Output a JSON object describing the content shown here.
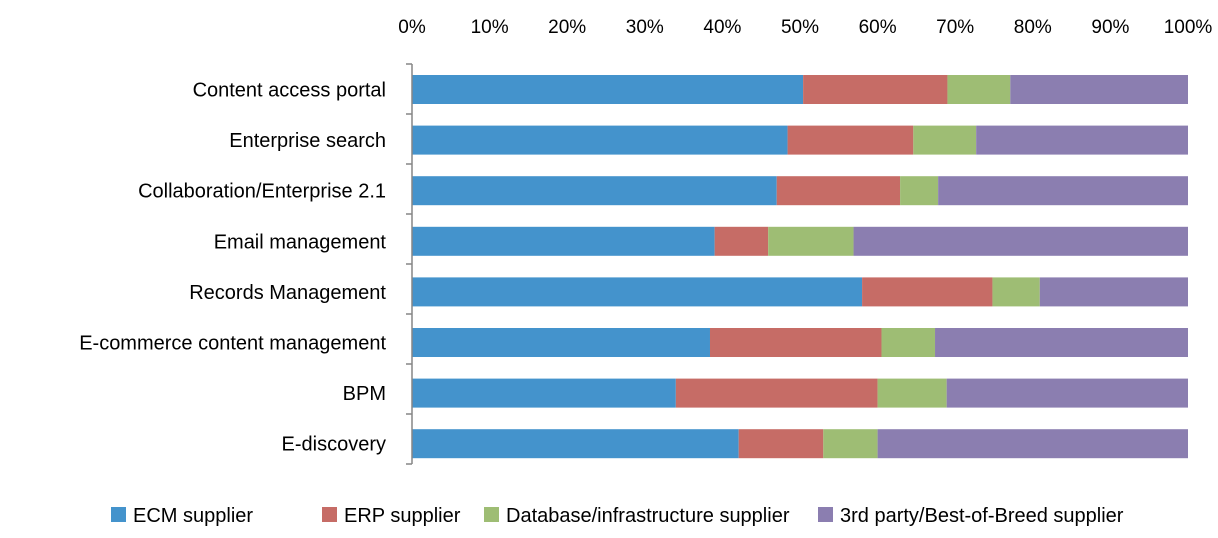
{
  "chart_data": {
    "type": "bar",
    "orientation": "horizontal",
    "stacked": "percent",
    "categories": [
      "Content access portal",
      "Enterprise search",
      "Collaboration/Enterprise 2.1",
      "Email management",
      "Records Management",
      "E-commerce content management",
      "BPM",
      "E-discovery"
    ],
    "series": [
      {
        "name": "ECM supplier",
        "color": "#4493CC",
        "values": [
          50.4,
          48.4,
          47.0,
          39.0,
          58.0,
          38.4,
          34.0,
          42.1
        ]
      },
      {
        "name": "ERP supplier",
        "color": "#C66C66",
        "values": [
          18.6,
          16.2,
          15.9,
          6.9,
          16.8,
          22.1,
          26.0,
          10.9
        ]
      },
      {
        "name": "Database/infrastructure supplier",
        "color": "#9EBD74",
        "values": [
          8.1,
          8.1,
          4.9,
          11.0,
          6.1,
          6.9,
          8.9,
          7.0
        ]
      },
      {
        "name": "3rd party/Best-of-Breed supplier",
        "color": "#8B7EB0",
        "values": [
          22.9,
          27.3,
          32.2,
          43.1,
          19.1,
          32.6,
          31.1,
          40.0
        ]
      }
    ],
    "x_ticks": [
      "0%",
      "10%",
      "20%",
      "30%",
      "40%",
      "50%",
      "60%",
      "70%",
      "80%",
      "90%",
      "100%"
    ],
    "xlim": [
      0,
      100
    ],
    "x_axis_position": "top",
    "grid": false,
    "legend_position": "bottom"
  }
}
